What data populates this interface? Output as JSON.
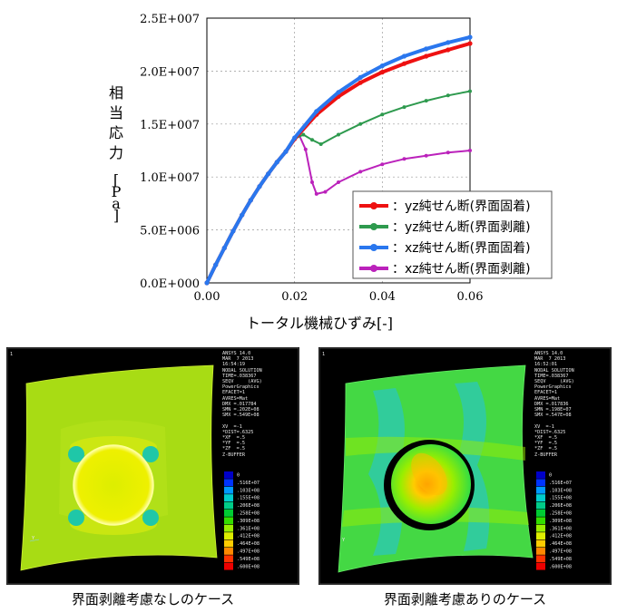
{
  "chart_data": {
    "type": "line",
    "xlabel": "トータル機械ひずみ[-]",
    "ylabel": "相当応力 [Pa]",
    "xlim": [
      0,
      0.06
    ],
    "ylim": [
      0,
      25000000
    ],
    "x_ticks": [
      "0.00",
      "0.02",
      "0.04",
      "0.06"
    ],
    "y_ticks": [
      "0.0E+000",
      "5.0E+006",
      "1.0E+007",
      "1.5E+007",
      "2.0E+007",
      "2.5E+007"
    ],
    "grid": true,
    "legend_position": "bottom-right",
    "series": [
      {
        "name": "：yz純せん断(界面固着)",
        "color": "#ee1111",
        "x": [
          0,
          0.002,
          0.004,
          0.006,
          0.008,
          0.01,
          0.012,
          0.014,
          0.016,
          0.018,
          0.02,
          0.025,
          0.03,
          0.035,
          0.04,
          0.045,
          0.05,
          0.055,
          0.06
        ],
        "y": [
          0,
          1700000,
          3300000,
          4900000,
          6400000,
          7800000,
          9100000,
          10300000,
          11400000,
          12400000,
          13600000,
          15900000,
          17600000,
          18900000,
          19900000,
          20700000,
          21400000,
          22000000,
          22600000
        ]
      },
      {
        "name": "：yz純せん断(界面剥離)",
        "color": "#2e9a4e",
        "x": [
          0,
          0.002,
          0.004,
          0.006,
          0.008,
          0.01,
          0.012,
          0.014,
          0.016,
          0.018,
          0.02,
          0.022,
          0.024,
          0.026,
          0.03,
          0.035,
          0.04,
          0.045,
          0.05,
          0.055,
          0.06
        ],
        "y": [
          0,
          1700000,
          3300000,
          4900000,
          6400000,
          7800000,
          9100000,
          10300000,
          11400000,
          12400000,
          13600000,
          14000000,
          13500000,
          13100000,
          14000000,
          15000000,
          15900000,
          16600000,
          17200000,
          17700000,
          18100000
        ]
      },
      {
        "name": "：xz純せん断(界面固着)",
        "color": "#2a77ee",
        "x": [
          0,
          0.002,
          0.004,
          0.006,
          0.008,
          0.01,
          0.012,
          0.014,
          0.016,
          0.018,
          0.02,
          0.025,
          0.03,
          0.035,
          0.04,
          0.045,
          0.05,
          0.055,
          0.06
        ],
        "y": [
          0,
          1700000,
          3300000,
          4900000,
          6400000,
          7800000,
          9100000,
          10300000,
          11400000,
          12400000,
          13700000,
          16200000,
          18000000,
          19400000,
          20500000,
          21400000,
          22100000,
          22700000,
          23200000
        ]
      },
      {
        "name": "：xz純せん断(界面剥離)",
        "color": "#bb22bb",
        "x": [
          0,
          0.002,
          0.004,
          0.006,
          0.008,
          0.01,
          0.012,
          0.014,
          0.016,
          0.018,
          0.02,
          0.021,
          0.0225,
          0.024,
          0.025,
          0.027,
          0.03,
          0.035,
          0.04,
          0.045,
          0.05,
          0.055,
          0.06
        ],
        "y": [
          0,
          1700000,
          3300000,
          4900000,
          6400000,
          7800000,
          9100000,
          10300000,
          11400000,
          12400000,
          13600000,
          14000000,
          12600000,
          9500000,
          8400000,
          8600000,
          9500000,
          10500000,
          11200000,
          11700000,
          12000000,
          12300000,
          12500000
        ]
      }
    ]
  },
  "panels": {
    "left": {
      "caption": "界面剥離考慮なしのケース",
      "info_lines": [
        "ANSYS 14.0",
        "MAR  7 2013",
        "16:54:19",
        "NODAL SOLUTION",
        "TIME=.038367",
        "SEQV     (AVG)",
        "PowerGraphics",
        "EFACET=1",
        "AVRES=Mat",
        "DMX =.017784",
        "SMN =.202E+08",
        "SMX =.549E+08",
        "",
        "XV  =-1",
        "*DIST=.6325",
        "*XF  =.5",
        "*YF  =.5",
        "*ZF  =.5",
        "Z-BUFFER"
      ],
      "frame_number": "1",
      "scale_labels": [
        "0",
        ".516E+07",
        ".103E+08",
        ".155E+08",
        ".206E+08",
        ".258E+08",
        ".309E+08",
        ".361E+08",
        ".412E+08",
        ".464E+08",
        ".497E+08",
        ".549E+08",
        ".600E+08"
      ]
    },
    "right": {
      "caption": "界面剥離考慮ありのケース",
      "info_lines": [
        "ANSYS 14.0",
        "MAR  7 2013",
        "16:52:01",
        "NODAL SOLUTION",
        "TIME=.038367",
        "SEQV     (AVG)",
        "PowerGraphics",
        "EFACET=1",
        "AVRES=Mat",
        "DMX =.017836",
        "SMN =.198E+07",
        "SMX =.547E+08",
        "",
        "XV  =-1",
        "*DIST=.6325",
        "*XF  =.5",
        "*YF  =.5",
        "*ZF  =.5",
        "Z-BUFFER"
      ],
      "frame_number": "1",
      "scale_labels": [
        "0",
        ".516E+07",
        ".103E+08",
        ".155E+08",
        ".206E+08",
        ".258E+08",
        ".309E+08",
        ".361E+08",
        ".412E+08",
        ".464E+08",
        ".497E+08",
        ".549E+08",
        ".600E+08"
      ]
    }
  },
  "contour_colors": [
    "#0000c8",
    "#0033ff",
    "#0099ff",
    "#00cccc",
    "#00cc88",
    "#00cc33",
    "#33dd00",
    "#99ee00",
    "#ddee00",
    "#ffcc00",
    "#ff8800",
    "#ff3300",
    "#ee0000"
  ]
}
